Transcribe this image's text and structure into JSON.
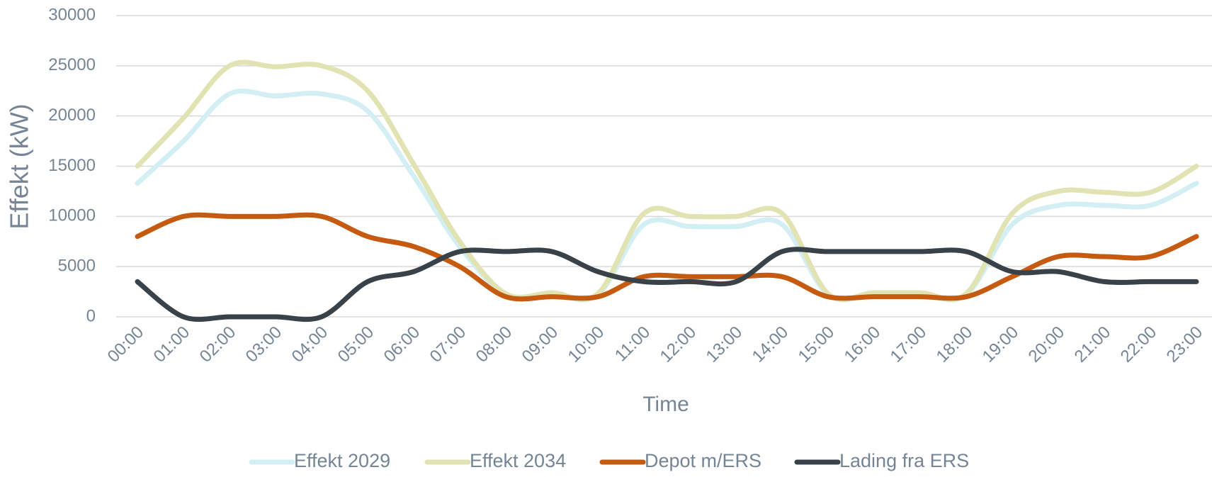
{
  "chart_data": {
    "type": "line",
    "y_label": "Effekt (kW)",
    "x_label": "Time",
    "categories": [
      "00:00",
      "01:00",
      "02:00",
      "03:00",
      "04:00",
      "05:00",
      "06:00",
      "07:00",
      "08:00",
      "09:00",
      "10:00",
      "11:00",
      "12:00",
      "13:00",
      "14:00",
      "15:00",
      "16:00",
      "17:00",
      "18:00",
      "19:00",
      "20:00",
      "21:00",
      "22:00",
      "23:00"
    ],
    "series": [
      {
        "name": "Effekt 2029",
        "color": "#d3eff3",
        "values": [
          13300,
          17500,
          22200,
          22000,
          22200,
          20500,
          14000,
          7000,
          2200,
          2200,
          2200,
          9200,
          9000,
          9000,
          9200,
          2200,
          2200,
          2200,
          2200,
          9200,
          11100,
          11100,
          11100,
          13300
        ]
      },
      {
        "name": "Effekt 2034",
        "color": "#e1e3b3",
        "values": [
          15000,
          19800,
          25000,
          24900,
          25000,
          22500,
          15200,
          7500,
          2300,
          2400,
          2300,
          10300,
          10000,
          10000,
          10300,
          2300,
          2400,
          2400,
          2300,
          10300,
          12500,
          12400,
          12400,
          15000
        ]
      },
      {
        "name": "Depot m/ERS",
        "color": "#c55a11",
        "values": [
          8000,
          10000,
          10000,
          10000,
          10000,
          8000,
          7000,
          5000,
          2000,
          2000,
          2000,
          4000,
          4000,
          4000,
          4000,
          2000,
          2000,
          2000,
          2000,
          4000,
          6000,
          6000,
          6000,
          8000
        ]
      },
      {
        "name": "Lading fra ERS",
        "color": "#3a4249",
        "values": [
          3500,
          0,
          0,
          0,
          0,
          3500,
          4500,
          6500,
          6500,
          6500,
          4500,
          3500,
          3500,
          3500,
          6500,
          6500,
          6500,
          6500,
          6500,
          4500,
          4500,
          3500,
          3500,
          3500
        ]
      }
    ],
    "ylim": [
      0,
      30000
    ],
    "yticks": [
      0,
      5000,
      10000,
      15000,
      20000,
      25000,
      30000
    ],
    "grid": true,
    "legend": "bottom"
  }
}
